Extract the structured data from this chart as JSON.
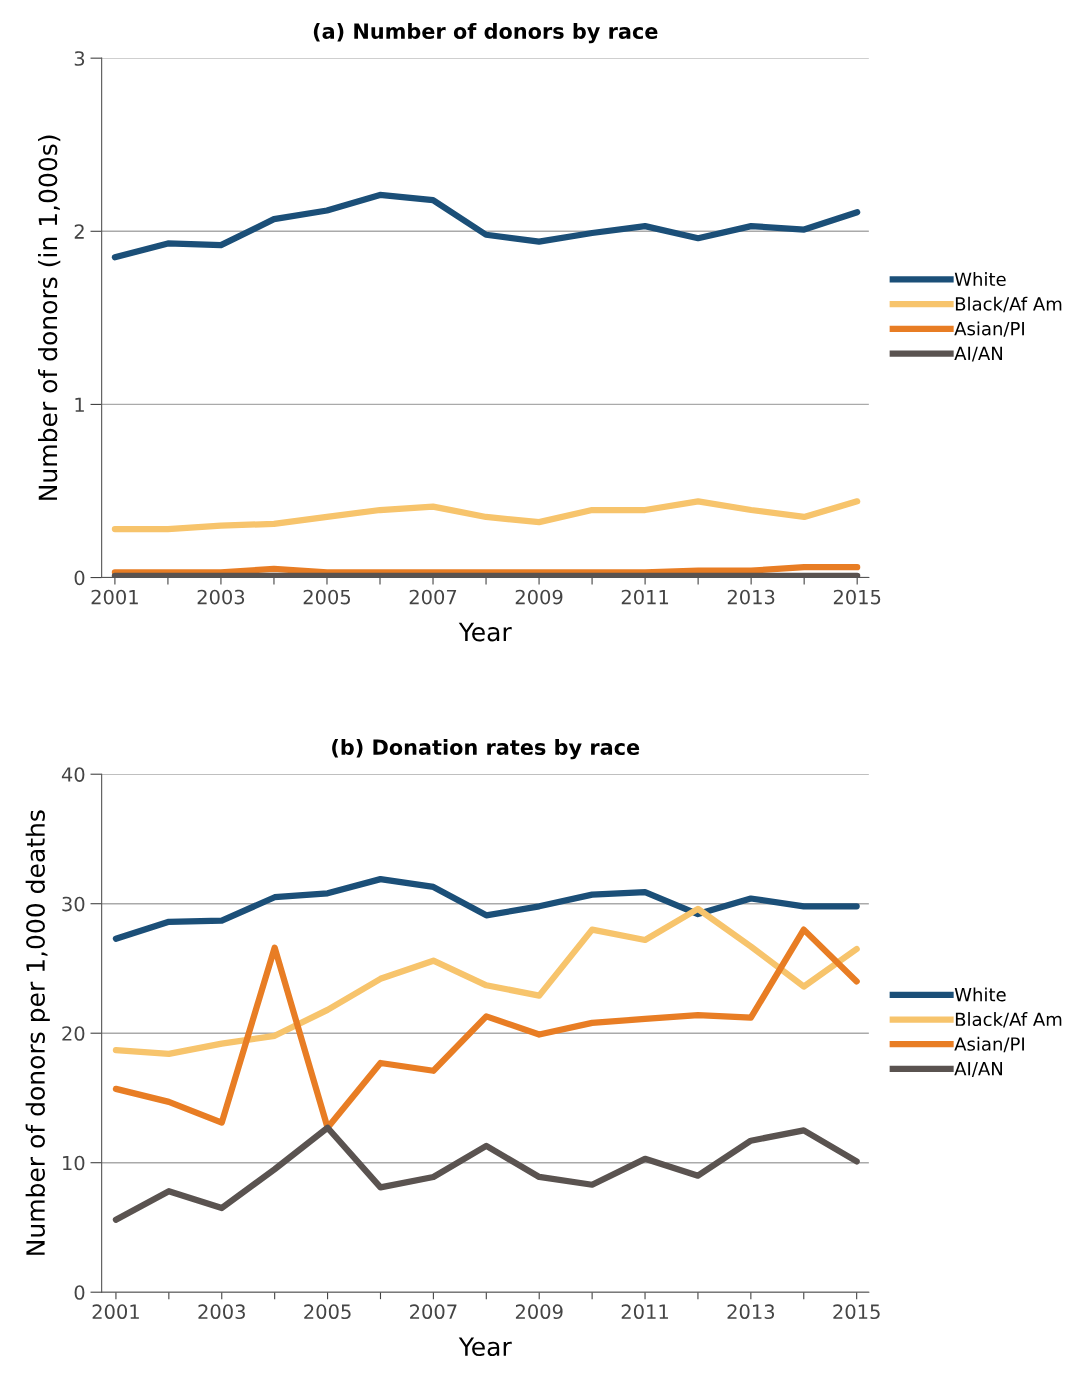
{
  "chart_data": [
    {
      "type": "line",
      "title": "(a) Number of donors by race",
      "xlabel": "Year",
      "ylabel": "Number of donors (in 1,000s)",
      "x": [
        2001,
        2002,
        2003,
        2004,
        2005,
        2006,
        2007,
        2008,
        2009,
        2010,
        2011,
        2012,
        2013,
        2014,
        2015
      ],
      "xlim": [
        2000.75,
        2015.22
      ],
      "xticks": [
        2001,
        {
          "value": 2002,
          "label": null
        },
        2003,
        {
          "value": 2004,
          "label": null
        },
        2005,
        {
          "value": 2006,
          "label": null
        },
        2007,
        {
          "value": 2008,
          "label": null
        },
        2009,
        {
          "value": 2010,
          "label": null
        },
        2011,
        {
          "value": 2012,
          "label": null
        },
        2013,
        {
          "value": 2014,
          "label": null
        },
        2015
      ],
      "ylim": [
        0,
        3
      ],
      "yticks": [
        0,
        1,
        2,
        3
      ],
      "grid": "y",
      "legend": "right",
      "marker": "none",
      "line_style": "solid",
      "series": [
        {
          "name": "White",
          "color": "#1b4f78",
          "values": [
            1.85,
            1.93,
            1.92,
            2.07,
            2.12,
            2.21,
            2.18,
            1.98,
            1.94,
            1.99,
            2.03,
            1.96,
            2.03,
            2.01,
            2.11
          ]
        },
        {
          "name": "Black/Af Am",
          "color": "#f7c46c",
          "values": [
            0.28,
            0.28,
            0.3,
            0.31,
            0.35,
            0.39,
            0.41,
            0.35,
            0.32,
            0.39,
            0.39,
            0.44,
            0.39,
            0.35,
            0.44
          ]
        },
        {
          "name": "Asian/PI",
          "color": "#e87d24",
          "values": [
            0.03,
            0.03,
            0.03,
            0.05,
            0.03,
            0.03,
            0.03,
            0.03,
            0.03,
            0.03,
            0.03,
            0.04,
            0.04,
            0.06,
            0.06
          ]
        },
        {
          "name": "AI/AN",
          "color": "#5a5350",
          "values": [
            0.01,
            0.01,
            0.01,
            0.01,
            0.01,
            0.01,
            0.01,
            0.01,
            0.01,
            0.01,
            0.01,
            0.01,
            0.01,
            0.01,
            0.01
          ]
        }
      ]
    },
    {
      "type": "line",
      "title": "(b) Donation rates by race",
      "xlabel": "Year",
      "ylabel": "Number of donors per 1,000 deaths",
      "x": [
        2001,
        2002,
        2003,
        2004,
        2005,
        2006,
        2007,
        2008,
        2009,
        2010,
        2011,
        2012,
        2013,
        2014,
        2015
      ],
      "xlim": [
        2000.73,
        2015.23
      ],
      "xticks": [
        2001,
        {
          "value": 2002,
          "label": null
        },
        2003,
        {
          "value": 2004,
          "label": null
        },
        2005,
        {
          "value": 2006,
          "label": null
        },
        2007,
        {
          "value": 2008,
          "label": null
        },
        2009,
        {
          "value": 2010,
          "label": null
        },
        2011,
        {
          "value": 2012,
          "label": null
        },
        2013,
        {
          "value": 2014,
          "label": null
        },
        2015
      ],
      "ylim": [
        0,
        40
      ],
      "yticks": [
        0,
        10,
        20,
        30,
        40
      ],
      "grid": "y",
      "legend": "right",
      "marker": "none",
      "line_style": "solid",
      "series": [
        {
          "name": "White",
          "color": "#1b4f78",
          "values": [
            27.3,
            28.6,
            28.7,
            30.5,
            30.8,
            31.9,
            31.3,
            29.1,
            29.8,
            30.7,
            30.9,
            29.2,
            30.4,
            29.8,
            29.8
          ]
        },
        {
          "name": "Black/Af Am",
          "color": "#f7c46c",
          "values": [
            18.7,
            18.4,
            19.2,
            19.8,
            21.8,
            24.2,
            25.6,
            23.7,
            22.9,
            28.0,
            27.2,
            29.6,
            26.7,
            23.6,
            26.5
          ]
        },
        {
          "name": "Asian/PI",
          "color": "#e87d24",
          "values": [
            15.7,
            14.7,
            13.1,
            26.6,
            12.7,
            17.7,
            17.1,
            21.3,
            19.9,
            20.8,
            21.1,
            21.4,
            21.2,
            28.0,
            24.0
          ]
        },
        {
          "name": "AI/AN",
          "color": "#5a5350",
          "values": [
            5.6,
            7.8,
            6.5,
            9.5,
            12.7,
            8.1,
            8.9,
            11.3,
            8.9,
            8.3,
            10.3,
            9.0,
            11.7,
            12.5,
            10.1
          ]
        }
      ]
    }
  ]
}
